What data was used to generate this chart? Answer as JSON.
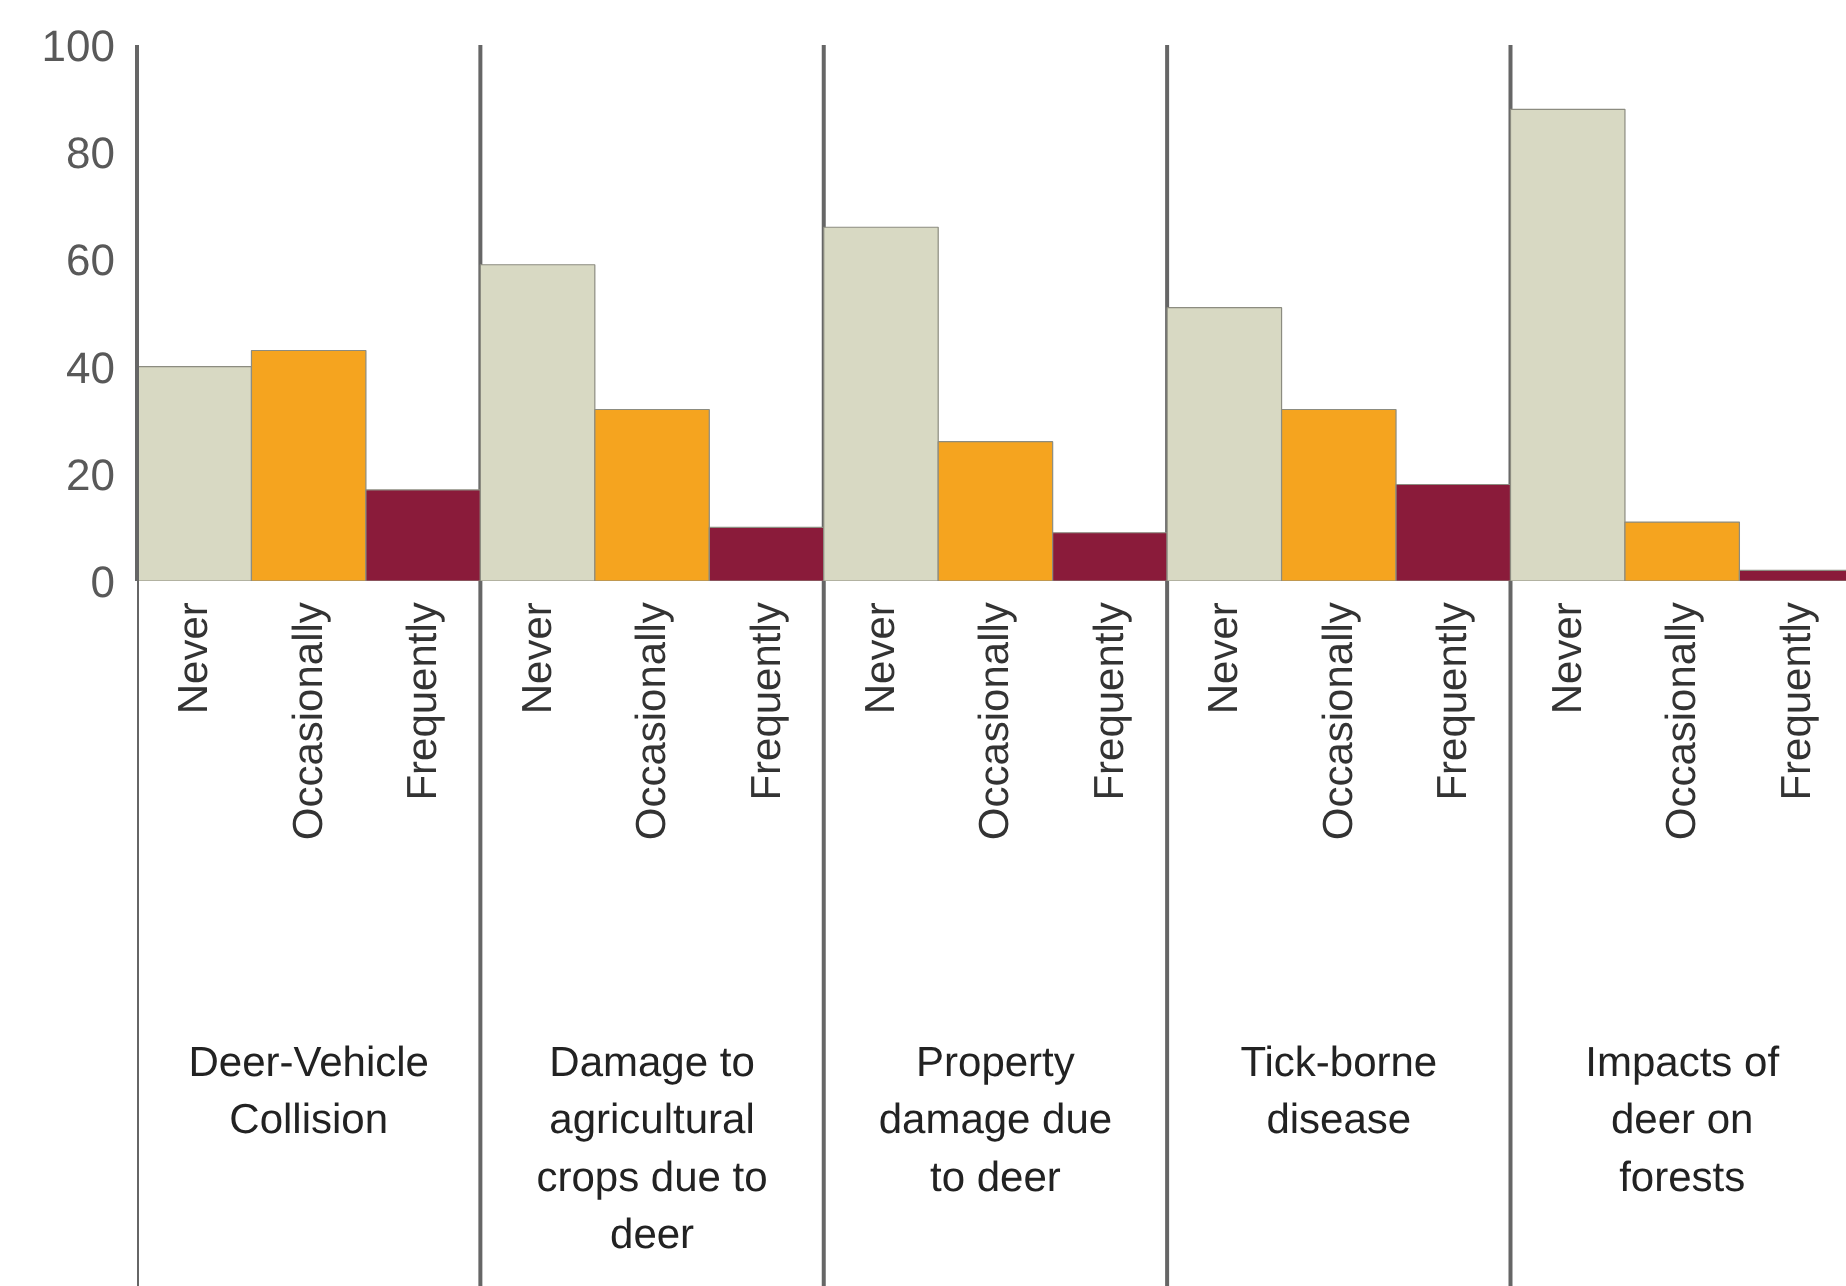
{
  "chart_data": {
    "type": "bar",
    "categories": [
      "Never",
      "Occasionally",
      "Frequently",
      "Never",
      "Occasionally",
      "Frequently",
      "Never",
      "Occasionally",
      "Frequently",
      "Never",
      "Occasionally",
      "Frequently",
      "Never",
      "Occasionally",
      "Frequently"
    ],
    "values": [
      40,
      43,
      17,
      59,
      32,
      10,
      66,
      26,
      9,
      51,
      32,
      18,
      88,
      11,
      2
    ],
    "colors": [
      "#d8d9c3",
      "#f5a41f",
      "#8a1b3a",
      "#d8d9c3",
      "#f5a41f",
      "#8a1b3a",
      "#d8d9c3",
      "#f5a41f",
      "#8a1b3a",
      "#d8d9c3",
      "#f5a41f",
      "#8a1b3a",
      "#d8d9c3",
      "#f5a41f",
      "#8a1b3a"
    ],
    "annotations": [
      "Deer-Vehicle Collision",
      "Damage to agricultural crops due to deer",
      "Property damage due to deer",
      "Tick-borne disease",
      "Impacts of deer on forests"
    ],
    "ylim": [
      0,
      100
    ],
    "yticks": [
      0,
      20,
      40,
      60,
      80,
      100
    ],
    "grid": false,
    "legend": false
  }
}
